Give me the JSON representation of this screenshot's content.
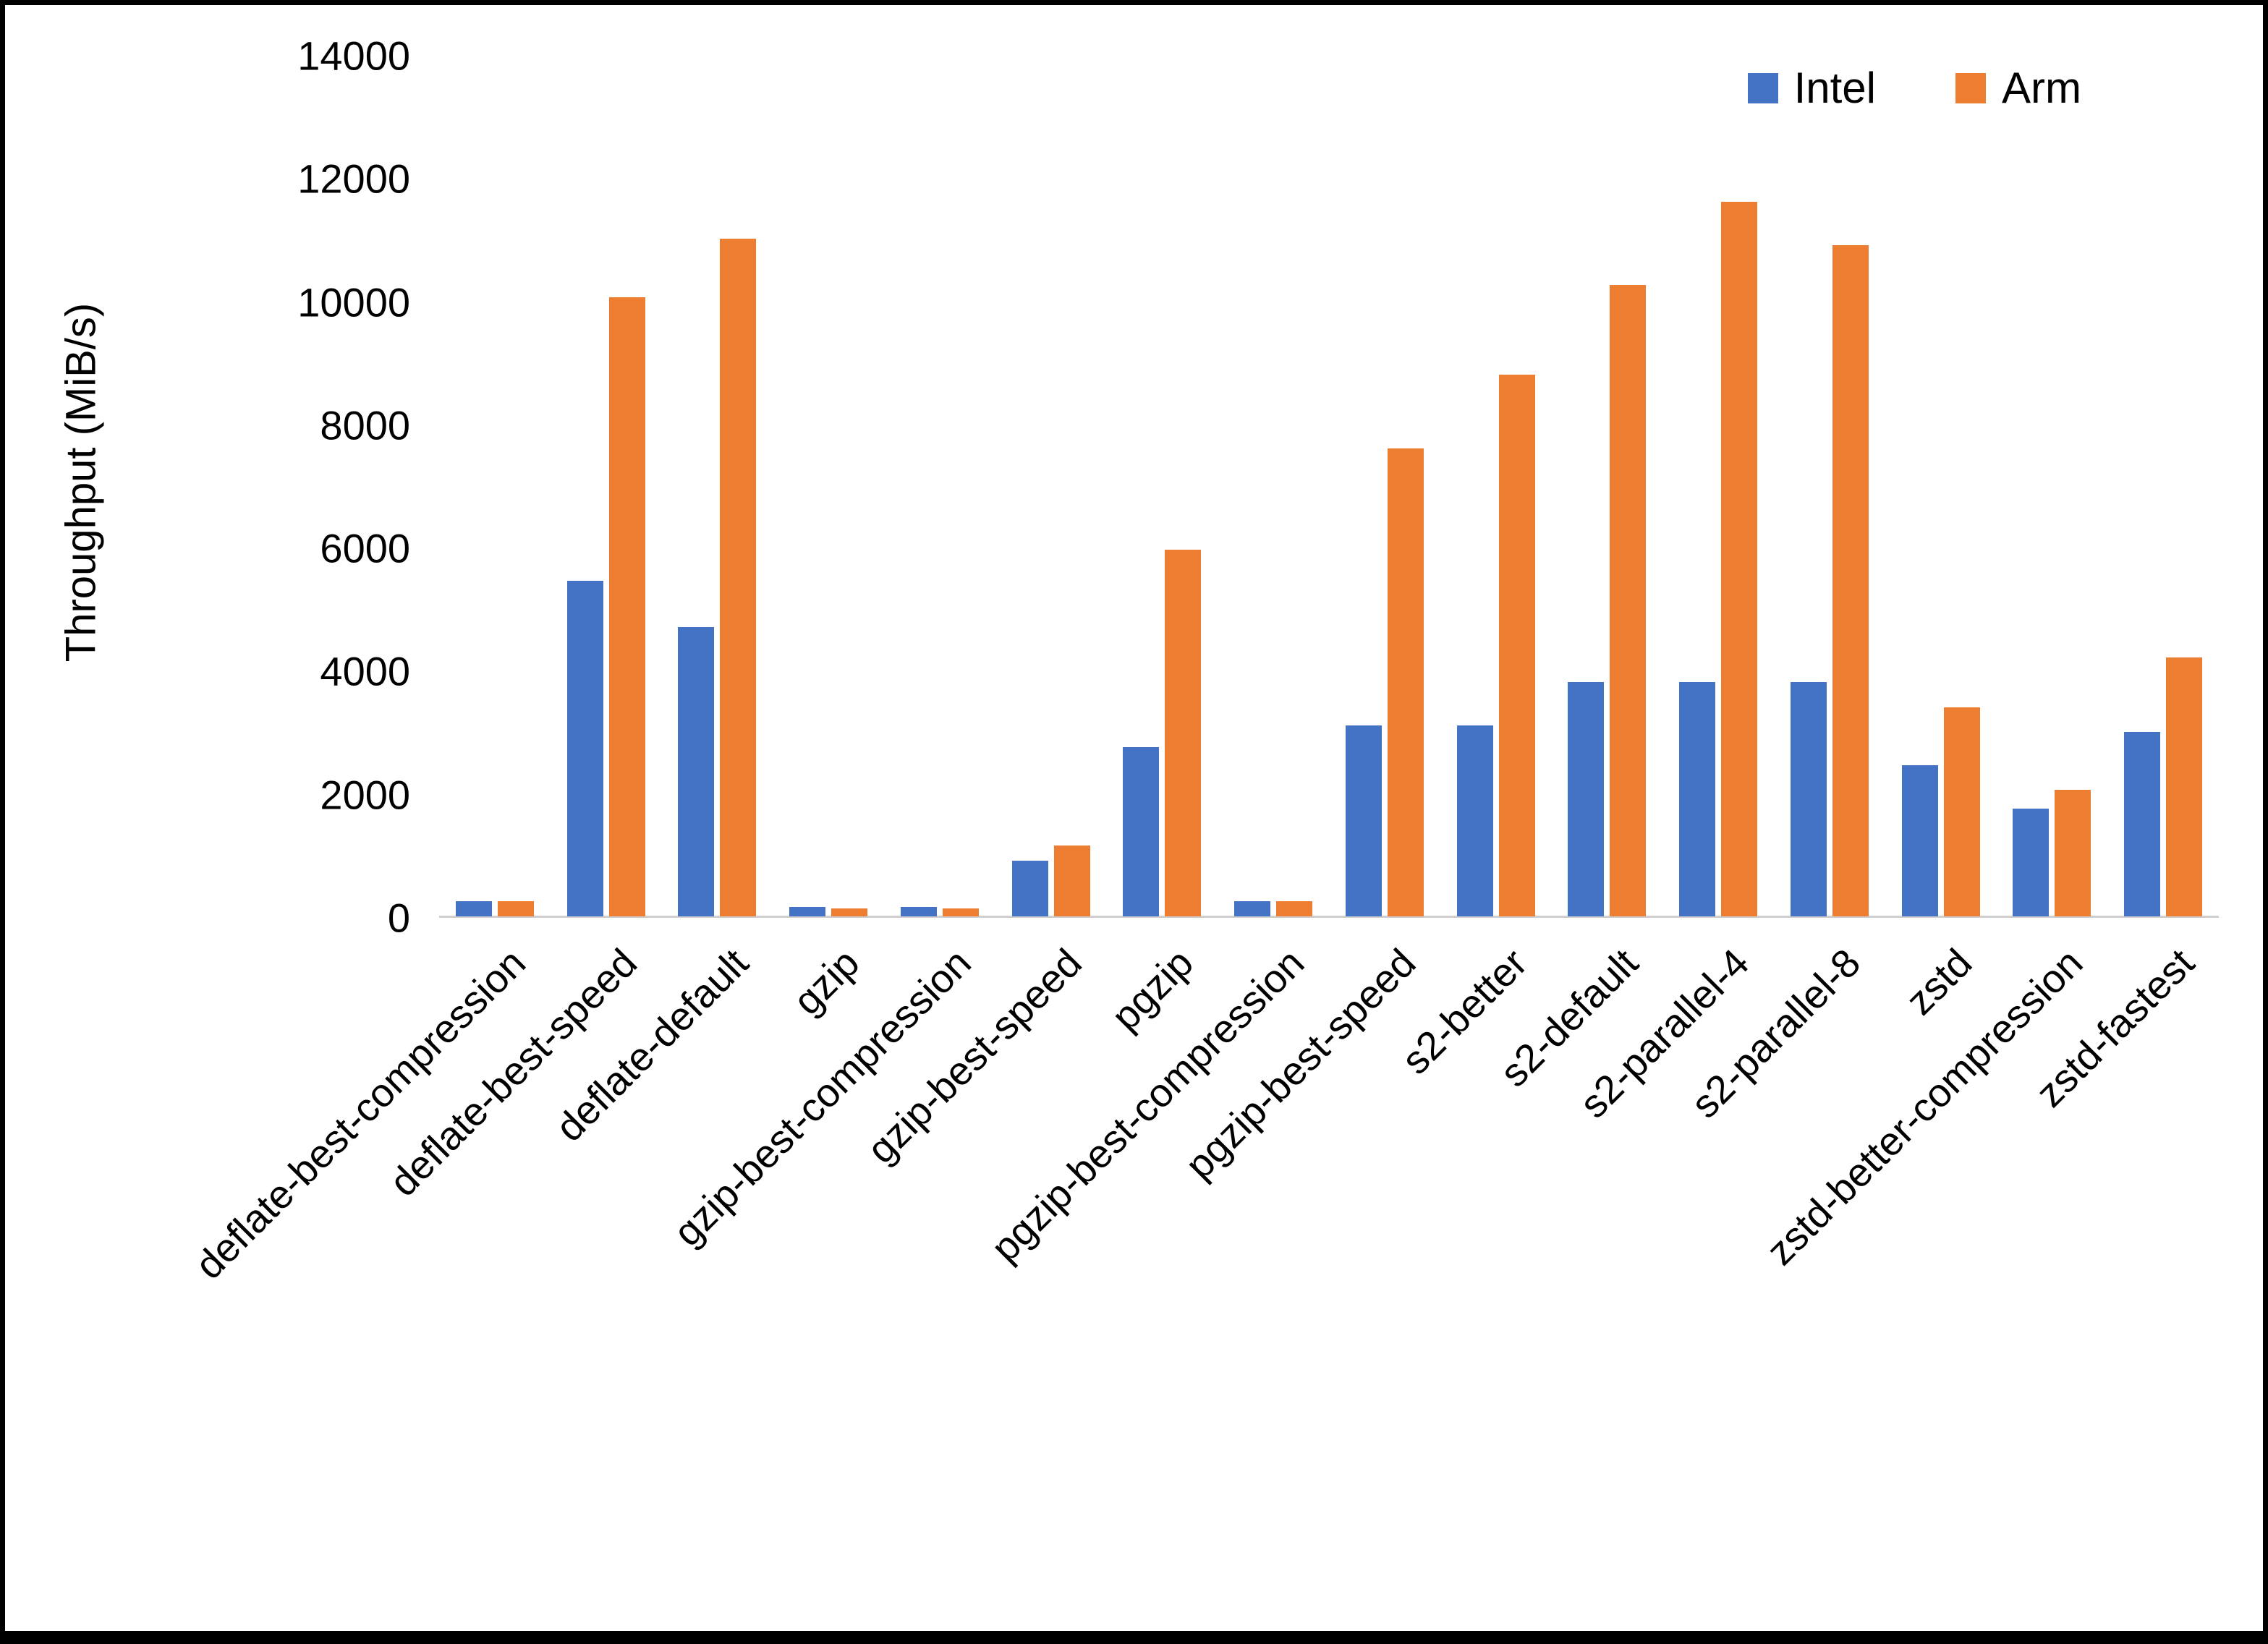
{
  "chart_data": {
    "type": "bar",
    "title": "",
    "xlabel": "",
    "ylabel": "Throughput (MiB/s)",
    "ylim": [
      0,
      14000
    ],
    "yticks": [
      0,
      2000,
      4000,
      6000,
      8000,
      10000,
      12000,
      14000
    ],
    "grid": false,
    "legend_position": "top-right",
    "categories": [
      "deflate-best-compression",
      "deflate-best-speed",
      "deflate-default",
      "gzip",
      "gzip-best-compression",
      "gzip-best-speed",
      "pgzip",
      "pgzip-best-compression",
      "pgzip-best-speed",
      "s2-better",
      "s2-default",
      "s2-parallel-4",
      "s2-parallel-8",
      "zstd",
      "zstd-better-compression",
      "zstd-fastest"
    ],
    "series": [
      {
        "name": "Intel",
        "color": "#4472C4",
        "values": [
          250,
          5450,
          4700,
          150,
          150,
          900,
          2750,
          250,
          3100,
          3100,
          3800,
          3800,
          3800,
          2450,
          1750,
          3000
        ]
      },
      {
        "name": "Arm",
        "color": "#ED7D31",
        "values": [
          250,
          10050,
          11000,
          130,
          130,
          1150,
          5950,
          250,
          7600,
          8800,
          10250,
          11600,
          10900,
          3400,
          2050,
          4200
        ]
      }
    ]
  }
}
